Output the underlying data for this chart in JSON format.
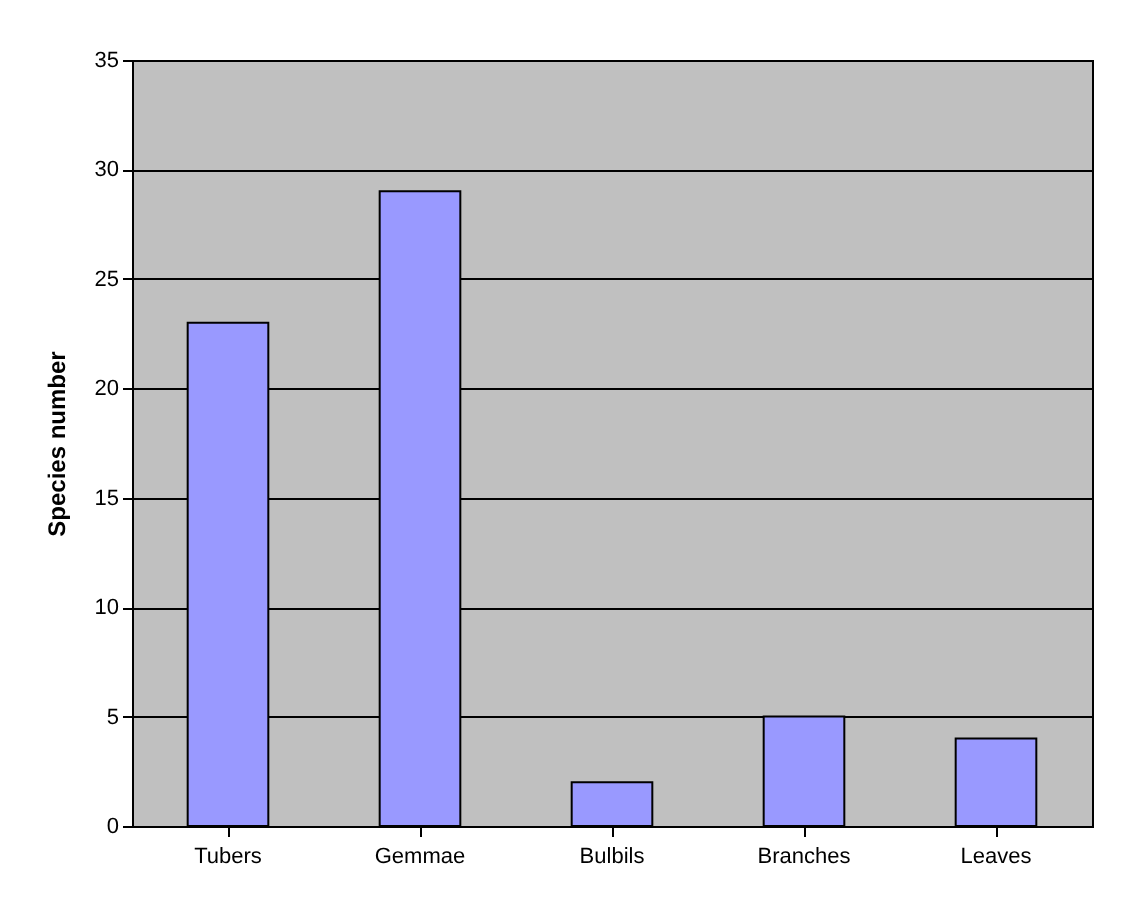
{
  "chart_data": {
    "type": "bar",
    "ylabel": "Species number",
    "categories": [
      "Tubers",
      "Gemmae",
      "Bulbils",
      "Branches",
      "Leaves"
    ],
    "values": [
      23,
      29,
      2,
      5,
      4
    ],
    "color": "#9999ff",
    "ylim": [
      0,
      35
    ],
    "yticks": [
      0,
      5,
      10,
      15,
      20,
      25,
      30,
      35
    ],
    "grid": "y"
  }
}
